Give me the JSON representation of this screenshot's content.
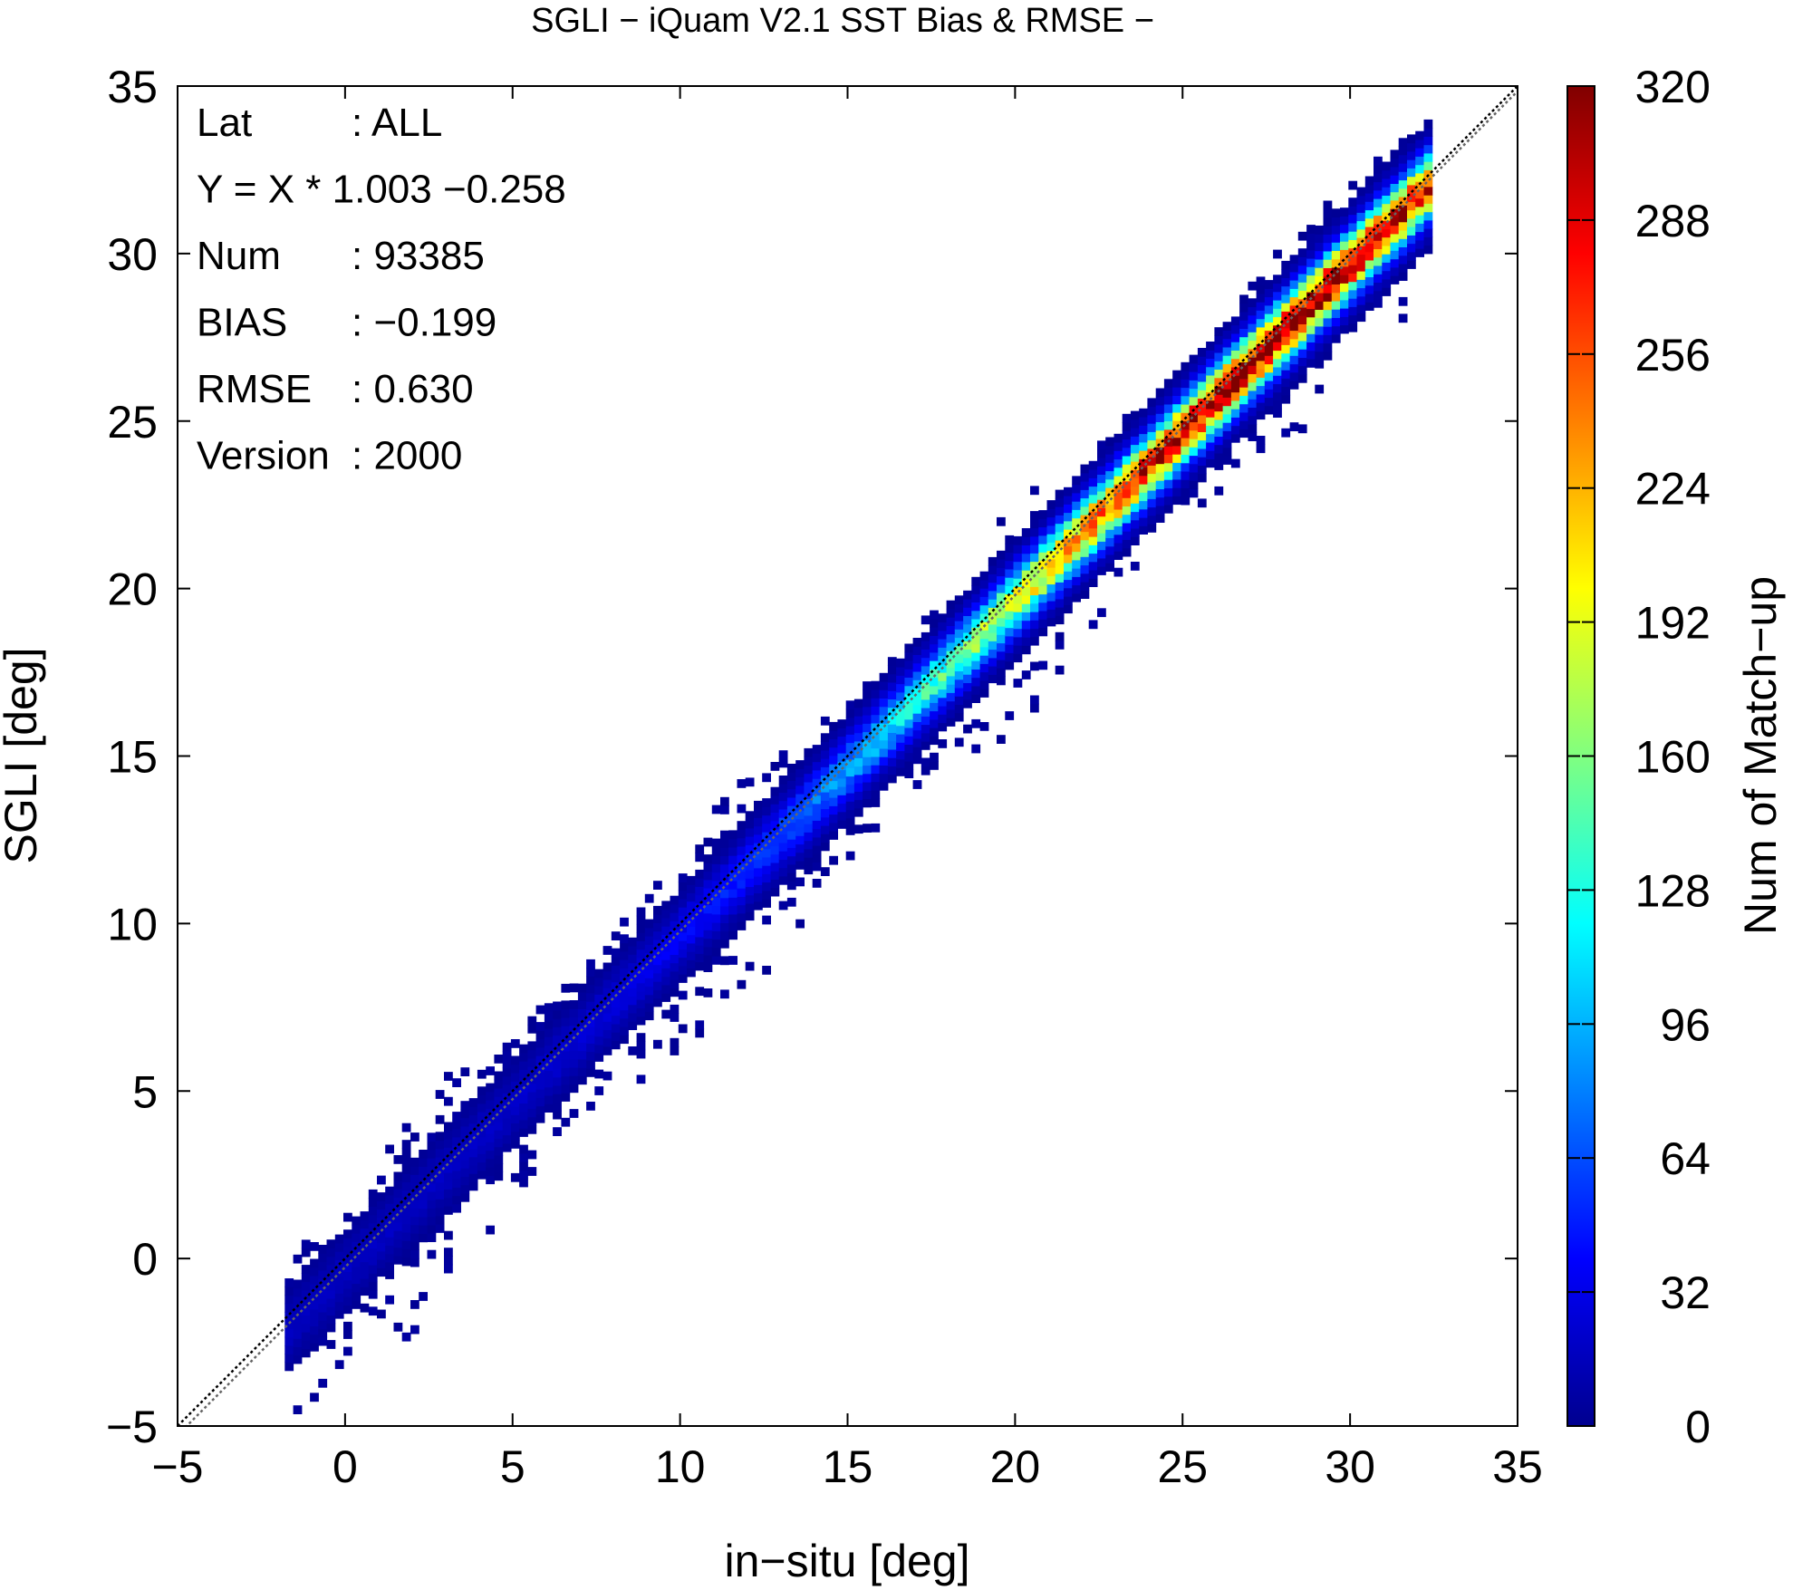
{
  "chart_data": {
    "type": "heatmap",
    "title": "SGLI − iQuam V2.1 SST Bias & RMSE  −",
    "xlabel": "in−situ [deg]",
    "ylabel": "SGLI [deg]",
    "xlim": [
      -5,
      35
    ],
    "ylim": [
      -5,
      35
    ],
    "x_ticks": [
      "−5",
      "0",
      "5",
      "10",
      "15",
      "20",
      "25",
      "30",
      "35"
    ],
    "y_ticks": [
      "−5",
      "0",
      "5",
      "10",
      "15",
      "20",
      "25",
      "30",
      "35"
    ],
    "colorbar": {
      "label": "Num of Match−up",
      "range": [
        0,
        320
      ],
      "ticks": [
        "0",
        "32",
        "64",
        "96",
        "128",
        "160",
        "192",
        "224",
        "256",
        "288",
        "320"
      ],
      "colormap": [
        "#00008f",
        "#0000ff",
        "#0080ff",
        "#00ffff",
        "#80ff80",
        "#ffff00",
        "#ff8000",
        "#ff0000",
        "#800000"
      ]
    },
    "lines": [
      {
        "name": "1:1",
        "style": "dotted",
        "color": "#000000",
        "slope": 1.0,
        "intercept": 0.0
      },
      {
        "name": "fit",
        "style": "dotted",
        "color": "#666666",
        "slope": 1.003,
        "intercept": -0.258
      }
    ],
    "density_model": {
      "x_range": [
        -1.8,
        32.4
      ],
      "peak_x": 28,
      "peak_count": 310,
      "sigma": 0.62,
      "bin_width": 0.25
    },
    "stats": [
      {
        "label": "Lat",
        "value": ": ALL"
      },
      {
        "label": "Y = X * 1.003 −0.258",
        "value": ""
      },
      {
        "label": "Num",
        "value": ": 93385"
      },
      {
        "label": "BIAS",
        "value": ": −0.199"
      },
      {
        "label": "RMSE",
        "value": ": 0.630"
      },
      {
        "label": "Version",
        "value": ": 2000"
      }
    ]
  }
}
